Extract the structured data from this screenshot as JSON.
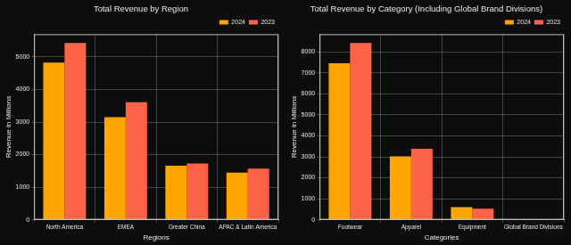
{
  "chart_data": [
    {
      "type": "bar",
      "title": "Total Revenue by Region",
      "x_label": "Regions",
      "y_label": "Revenue in Millions",
      "categories": [
        "North America",
        "EMEA",
        "Greater China",
        "APAC & Latin America"
      ],
      "series": [
        {
          "name": "2024",
          "color": "#ffa500",
          "values": [
            4830,
            3150,
            1660,
            1450
          ]
        },
        {
          "name": "2023",
          "color": "#ff6347",
          "values": [
            5430,
            3610,
            1730,
            1570
          ]
        }
      ],
      "ylim": [
        0,
        5700
      ],
      "yticks": [
        0,
        1000,
        2000,
        3000,
        4000,
        5000
      ],
      "grid": true,
      "legend": "upper right"
    },
    {
      "type": "bar",
      "title": "Total Revenue by Category (Including Global Brand Divisions)",
      "x_label": "Categories",
      "y_label": "Revenue in Millions",
      "categories": [
        "Footwear",
        "Apparel",
        "Equipment",
        "Global Brand Divisions"
      ],
      "series": [
        {
          "name": "2024",
          "color": "#ffa500",
          "values": [
            7460,
            3020,
            600,
            10
          ]
        },
        {
          "name": "2023",
          "color": "#ff6347",
          "values": [
            8430,
            3380,
            520,
            20
          ]
        }
      ],
      "ylim": [
        0,
        8850
      ],
      "yticks": [
        0,
        1000,
        2000,
        3000,
        4000,
        5000,
        6000,
        7000,
        8000
      ],
      "grid": true,
      "legend": "upper right"
    }
  ]
}
